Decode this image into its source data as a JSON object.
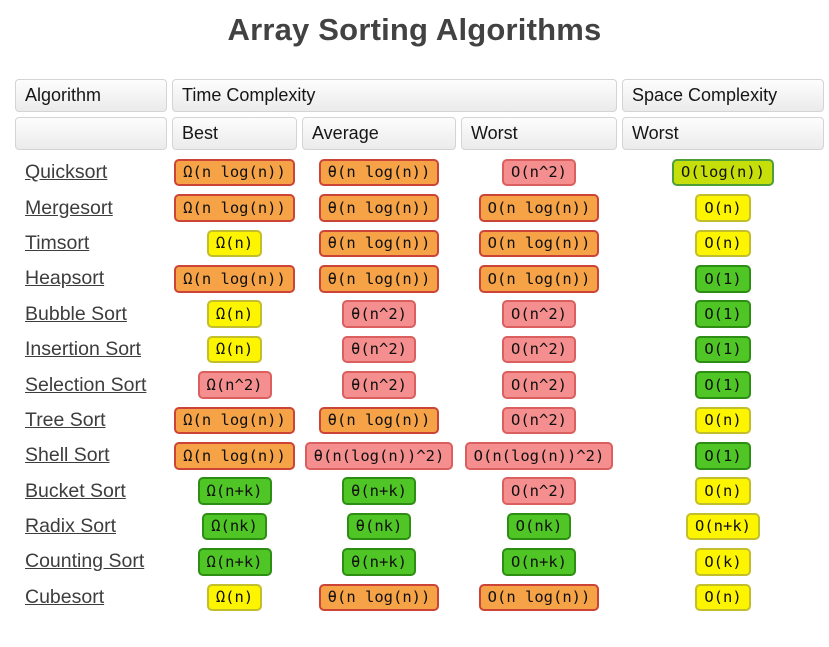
{
  "page": {
    "title": "Array Sorting Algorithms"
  },
  "colors": {
    "title_color": "#424242",
    "link_color": "#3d3d3d",
    "orange_bg": "#F5A346",
    "orange_border": "#CC4437",
    "red_bg": "#F58F8F",
    "red_border": "#DC5F5F",
    "yellow_bg": "#FDF500",
    "yellow_border": "#C3BE2B",
    "green_bg": "#4FC626",
    "green_border": "#2E8E14",
    "yellowgreen_bg": "#C6DE0A",
    "yellowgreen_border": "#4E9E3A"
  },
  "table": {
    "header_top": {
      "algorithm": "Algorithm",
      "time": "Time Complexity",
      "space": "Space Complexity"
    },
    "header_sub": {
      "algorithm": "",
      "best": "Best",
      "average": "Average",
      "worst": "Worst",
      "space_worst": "Worst"
    },
    "rows": [
      {
        "name": "Quicksort",
        "best": {
          "text": "Ω(n log(n))",
          "level": "orange"
        },
        "average": {
          "text": "θ(n log(n))",
          "level": "orange"
        },
        "worst": {
          "text": "O(n^2)",
          "level": "red"
        },
        "space": {
          "text": "O(log(n))",
          "level": "yellowgreen"
        }
      },
      {
        "name": "Mergesort",
        "best": {
          "text": "Ω(n log(n))",
          "level": "orange"
        },
        "average": {
          "text": "θ(n log(n))",
          "level": "orange"
        },
        "worst": {
          "text": "O(n log(n))",
          "level": "orange"
        },
        "space": {
          "text": "O(n)",
          "level": "yellow"
        }
      },
      {
        "name": "Timsort",
        "best": {
          "text": "Ω(n)",
          "level": "yellow"
        },
        "average": {
          "text": "θ(n log(n))",
          "level": "orange"
        },
        "worst": {
          "text": "O(n log(n))",
          "level": "orange"
        },
        "space": {
          "text": "O(n)",
          "level": "yellow"
        }
      },
      {
        "name": "Heapsort",
        "best": {
          "text": "Ω(n log(n))",
          "level": "orange"
        },
        "average": {
          "text": "θ(n log(n))",
          "level": "orange"
        },
        "worst": {
          "text": "O(n log(n))",
          "level": "orange"
        },
        "space": {
          "text": "O(1)",
          "level": "green"
        }
      },
      {
        "name": "Bubble Sort",
        "best": {
          "text": "Ω(n)",
          "level": "yellow"
        },
        "average": {
          "text": "θ(n^2)",
          "level": "red"
        },
        "worst": {
          "text": "O(n^2)",
          "level": "red"
        },
        "space": {
          "text": "O(1)",
          "level": "green"
        }
      },
      {
        "name": "Insertion Sort",
        "best": {
          "text": "Ω(n)",
          "level": "yellow"
        },
        "average": {
          "text": "θ(n^2)",
          "level": "red"
        },
        "worst": {
          "text": "O(n^2)",
          "level": "red"
        },
        "space": {
          "text": "O(1)",
          "level": "green"
        }
      },
      {
        "name": "Selection Sort",
        "best": {
          "text": "Ω(n^2)",
          "level": "red"
        },
        "average": {
          "text": "θ(n^2)",
          "level": "red"
        },
        "worst": {
          "text": "O(n^2)",
          "level": "red"
        },
        "space": {
          "text": "O(1)",
          "level": "green"
        }
      },
      {
        "name": "Tree Sort",
        "best": {
          "text": "Ω(n log(n))",
          "level": "orange"
        },
        "average": {
          "text": "θ(n log(n))",
          "level": "orange"
        },
        "worst": {
          "text": "O(n^2)",
          "level": "red"
        },
        "space": {
          "text": "O(n)",
          "level": "yellow"
        }
      },
      {
        "name": "Shell Sort",
        "best": {
          "text": "Ω(n log(n))",
          "level": "orange"
        },
        "average": {
          "text": "θ(n(log(n))^2)",
          "level": "red"
        },
        "worst": {
          "text": "O(n(log(n))^2)",
          "level": "red"
        },
        "space": {
          "text": "O(1)",
          "level": "green"
        }
      },
      {
        "name": "Bucket Sort",
        "best": {
          "text": "Ω(n+k)",
          "level": "green"
        },
        "average": {
          "text": "θ(n+k)",
          "level": "green"
        },
        "worst": {
          "text": "O(n^2)",
          "level": "red"
        },
        "space": {
          "text": "O(n)",
          "level": "yellow"
        }
      },
      {
        "name": "Radix Sort",
        "best": {
          "text": "Ω(nk)",
          "level": "green"
        },
        "average": {
          "text": "θ(nk)",
          "level": "green"
        },
        "worst": {
          "text": "O(nk)",
          "level": "green"
        },
        "space": {
          "text": "O(n+k)",
          "level": "yellow"
        }
      },
      {
        "name": "Counting Sort",
        "best": {
          "text": "Ω(n+k)",
          "level": "green"
        },
        "average": {
          "text": "θ(n+k)",
          "level": "green"
        },
        "worst": {
          "text": "O(n+k)",
          "level": "green"
        },
        "space": {
          "text": "O(k)",
          "level": "yellow"
        }
      },
      {
        "name": "Cubesort",
        "best": {
          "text": "Ω(n)",
          "level": "yellow"
        },
        "average": {
          "text": "θ(n log(n))",
          "level": "orange"
        },
        "worst": {
          "text": "O(n log(n))",
          "level": "orange"
        },
        "space": {
          "text": "O(n)",
          "level": "yellow"
        }
      }
    ]
  }
}
